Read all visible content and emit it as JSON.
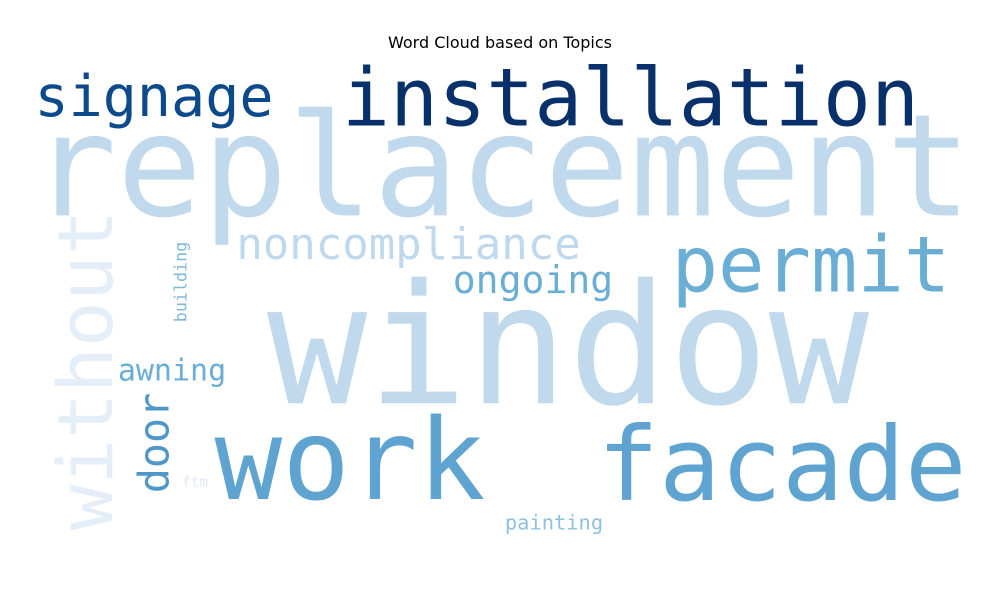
{
  "chart_data": {
    "type": "wordcloud",
    "title": "Word Cloud based on Topics",
    "colormap": "Blues",
    "words": [
      {
        "text": "window",
        "color": "#c0d9ec",
        "orientation": "horizontal"
      },
      {
        "text": "replacement",
        "color": "#c0d9ec",
        "orientation": "horizontal"
      },
      {
        "text": "installation",
        "color": "#08306b",
        "orientation": "horizontal"
      },
      {
        "text": "work",
        "color": "#5fa4d0",
        "orientation": "horizontal"
      },
      {
        "text": "facade",
        "color": "#5fa4d0",
        "orientation": "horizontal"
      },
      {
        "text": "permit",
        "color": "#6aaed5",
        "orientation": "horizontal"
      },
      {
        "text": "signage",
        "color": "#0c4a8c",
        "orientation": "horizontal"
      },
      {
        "text": "without",
        "color": "#e3eef8",
        "orientation": "vertical"
      },
      {
        "text": "noncompliance",
        "color": "#bed8ee",
        "orientation": "horizontal"
      },
      {
        "text": "ongoing",
        "color": "#6aaed5",
        "orientation": "horizontal"
      },
      {
        "text": "awning",
        "color": "#6aaed5",
        "orientation": "horizontal"
      },
      {
        "text": "door",
        "color": "#4f97c9",
        "orientation": "vertical"
      },
      {
        "text": "building",
        "color": "#80b9dd",
        "orientation": "vertical"
      },
      {
        "text": "painting",
        "color": "#8fc1e1",
        "orientation": "horizontal"
      },
      {
        "text": "ftm",
        "color": "#dfebf6",
        "orientation": "horizontal"
      }
    ]
  }
}
